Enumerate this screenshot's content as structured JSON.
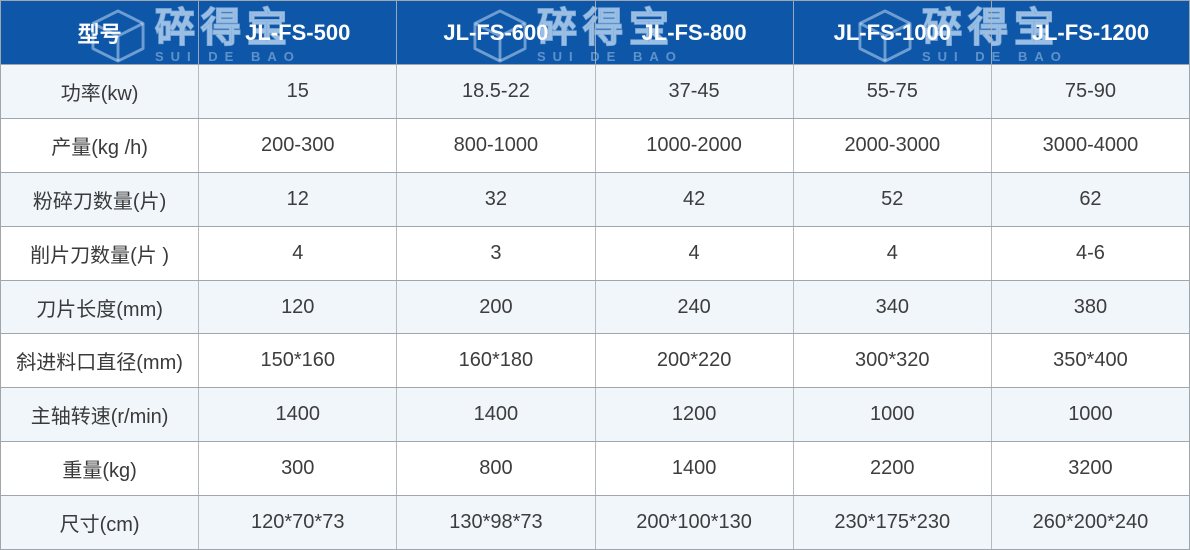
{
  "brand": {
    "name_cn": "碎得宝",
    "name_en": "SUI DE BAO"
  },
  "colors": {
    "header_bg": "#0e57a8",
    "header_text": "#fdfdfd",
    "row_alt_bg": "#f1f6fb",
    "row_bg": "#ffffff",
    "border": "#9fa6ad",
    "cell_text": "#3d3d3d",
    "watermark_blue": "#cde4fa"
  },
  "icons": {
    "cube_logo": "isometric-cube-outline watermark logo"
  },
  "table": {
    "header": {
      "model_label": "型号",
      "models": [
        "JL-FS-500",
        "JL-FS-600",
        "JL-FS-800",
        "JL-FS-1000",
        "JL-FS-1200"
      ]
    },
    "rows": [
      {
        "label": "功率(kw)",
        "values": [
          "15",
          "18.5-22",
          "37-45",
          "55-75",
          "75-90"
        ]
      },
      {
        "label": "产量(kg /h)",
        "values": [
          "200-300",
          "800-1000",
          "1000-2000",
          "2000-3000",
          "3000-4000"
        ]
      },
      {
        "label": "粉碎刀数量(片)",
        "values": [
          "12",
          "32",
          "42",
          "52",
          "62"
        ]
      },
      {
        "label": "削片刀数量(片 )",
        "values": [
          "4",
          "3",
          "4",
          "4",
          "4-6"
        ]
      },
      {
        "label": "刀片长度(mm)",
        "values": [
          "120",
          "200",
          "240",
          "340",
          "380"
        ]
      },
      {
        "label": "斜进料口直径(mm)",
        "values": [
          "150*160",
          "160*180",
          "200*220",
          "300*320",
          "350*400"
        ]
      },
      {
        "label": "主轴转速(r/min)",
        "values": [
          "1400",
          "1400",
          "1200",
          "1000",
          "1000"
        ]
      },
      {
        "label": "重量(kg)",
        "values": [
          "300",
          "800",
          "1400",
          "2200",
          "3200"
        ]
      },
      {
        "label": "尺寸(cm)",
        "values": [
          "120*70*73",
          "130*98*73",
          "200*100*130",
          "230*175*230",
          "260*200*240"
        ]
      }
    ]
  }
}
